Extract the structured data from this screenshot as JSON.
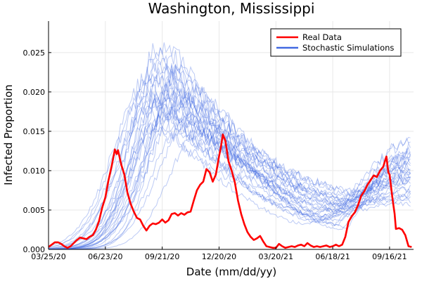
{
  "chart_data": {
    "type": "line",
    "title": "Washington, Mississippi",
    "xlabel": "Date (mm/dd/yy)",
    "ylabel": "Infected Proportion",
    "ylim": [
      0,
      0.029
    ],
    "xlim": [
      0,
      570
    ],
    "x_start_date": "03/25/20",
    "x_ticks": [
      {
        "day": 0,
        "label": "03/25/20"
      },
      {
        "day": 90,
        "label": "06/23/20"
      },
      {
        "day": 180,
        "label": "09/21/20"
      },
      {
        "day": 270,
        "label": "12/20/20"
      },
      {
        "day": 360,
        "label": "03/20/21"
      },
      {
        "day": 450,
        "label": "06/18/21"
      },
      {
        "day": 540,
        "label": "09/16/21"
      }
    ],
    "y_ticks": [
      {
        "value": 0,
        "label": "0.000"
      },
      {
        "value": 0.005,
        "label": "0.005"
      },
      {
        "value": 0.01,
        "label": "0.010"
      },
      {
        "value": 0.015,
        "label": "0.015"
      },
      {
        "value": 0.02,
        "label": "0.020"
      },
      {
        "value": 0.025,
        "label": "0.025"
      }
    ],
    "grid": true,
    "legend": {
      "placement": "top-right",
      "entries": [
        {
          "label": "Real Data",
          "color": "#ff0000"
        },
        {
          "label": "Stochastic Simulations",
          "color": "#4169e1"
        }
      ]
    },
    "series": [
      {
        "name": "Real Data",
        "color": "#ff0000",
        "points": [
          [
            0,
            0.0003
          ],
          [
            5,
            0.0006
          ],
          [
            10,
            0.0009
          ],
          [
            15,
            0.0009
          ],
          [
            20,
            0.0007
          ],
          [
            25,
            0.0004
          ],
          [
            30,
            0.0002
          ],
          [
            35,
            0.0004
          ],
          [
            40,
            0.0008
          ],
          [
            45,
            0.0012
          ],
          [
            50,
            0.0015
          ],
          [
            55,
            0.0014
          ],
          [
            60,
            0.0013
          ],
          [
            65,
            0.0016
          ],
          [
            70,
            0.0018
          ],
          [
            75,
            0.0025
          ],
          [
            80,
            0.0036
          ],
          [
            85,
            0.0053
          ],
          [
            90,
            0.0066
          ],
          [
            95,
            0.0088
          ],
          [
            100,
            0.0106
          ],
          [
            105,
            0.0127
          ],
          [
            108,
            0.0121
          ],
          [
            110,
            0.0126
          ],
          [
            115,
            0.0108
          ],
          [
            120,
            0.0095
          ],
          [
            125,
            0.0072
          ],
          [
            130,
            0.0058
          ],
          [
            135,
            0.0048
          ],
          [
            140,
            0.004
          ],
          [
            145,
            0.0038
          ],
          [
            150,
            0.003
          ],
          [
            155,
            0.0024
          ],
          [
            160,
            0.003
          ],
          [
            165,
            0.0033
          ],
          [
            170,
            0.0032
          ],
          [
            175,
            0.0034
          ],
          [
            180,
            0.0038
          ],
          [
            185,
            0.0034
          ],
          [
            190,
            0.0037
          ],
          [
            195,
            0.0045
          ],
          [
            200,
            0.0046
          ],
          [
            205,
            0.0043
          ],
          [
            210,
            0.0046
          ],
          [
            215,
            0.0044
          ],
          [
            220,
            0.0047
          ],
          [
            225,
            0.0048
          ],
          [
            230,
            0.0062
          ],
          [
            235,
            0.0075
          ],
          [
            240,
            0.0082
          ],
          [
            245,
            0.0086
          ],
          [
            250,
            0.0102
          ],
          [
            255,
            0.0098
          ],
          [
            260,
            0.0086
          ],
          [
            265,
            0.0095
          ],
          [
            270,
            0.0118
          ],
          [
            273,
            0.013
          ],
          [
            276,
            0.0146
          ],
          [
            280,
            0.0138
          ],
          [
            285,
            0.0112
          ],
          [
            290,
            0.01
          ],
          [
            295,
            0.0085
          ],
          [
            300,
            0.0062
          ],
          [
            305,
            0.0045
          ],
          [
            310,
            0.0032
          ],
          [
            315,
            0.0022
          ],
          [
            320,
            0.0016
          ],
          [
            325,
            0.0012
          ],
          [
            330,
            0.0014
          ],
          [
            335,
            0.0017
          ],
          [
            340,
            0.001
          ],
          [
            345,
            0.0004
          ],
          [
            350,
            0.0003
          ],
          [
            355,
            0.0002
          ],
          [
            360,
            0.0002
          ],
          [
            365,
            0.0007
          ],
          [
            370,
            0.0004
          ],
          [
            375,
            0.0002
          ],
          [
            380,
            0.0003
          ],
          [
            385,
            0.0004
          ],
          [
            390,
            0.0003
          ],
          [
            395,
            0.0005
          ],
          [
            400,
            0.0006
          ],
          [
            405,
            0.0004
          ],
          [
            410,
            0.0008
          ],
          [
            415,
            0.0005
          ],
          [
            420,
            0.0003
          ],
          [
            425,
            0.0004
          ],
          [
            430,
            0.0003
          ],
          [
            435,
            0.0004
          ],
          [
            440,
            0.0005
          ],
          [
            445,
            0.0003
          ],
          [
            450,
            0.0004
          ],
          [
            455,
            0.0006
          ],
          [
            460,
            0.0004
          ],
          [
            465,
            0.0006
          ],
          [
            470,
            0.0016
          ],
          [
            475,
            0.0035
          ],
          [
            480,
            0.0042
          ],
          [
            485,
            0.0047
          ],
          [
            490,
            0.0056
          ],
          [
            495,
            0.0068
          ],
          [
            500,
            0.0074
          ],
          [
            505,
            0.0082
          ],
          [
            510,
            0.0088
          ],
          [
            515,
            0.0094
          ],
          [
            520,
            0.0092
          ],
          [
            525,
            0.01
          ],
          [
            530,
            0.0105
          ],
          [
            535,
            0.0118
          ],
          [
            538,
            0.0098
          ],
          [
            540,
            0.0095
          ],
          [
            545,
            0.0062
          ],
          [
            548,
            0.0045
          ],
          [
            550,
            0.0026
          ],
          [
            555,
            0.0027
          ],
          [
            560,
            0.0025
          ],
          [
            565,
            0.0018
          ],
          [
            570,
            0.0004
          ],
          [
            575,
            0.0003
          ]
        ]
      },
      {
        "name": "Stochastic Simulations",
        "color": "#4169e1",
        "runs": [
          {
            "peak_day": 175,
            "peak": 0.0255,
            "trough_day": 465,
            "trough": 0.0025,
            "end": 0.0095
          },
          {
            "peak_day": 188,
            "peak": 0.0262,
            "trough_day": 475,
            "trough": 0.0028,
            "end": 0.0115
          },
          {
            "peak_day": 180,
            "peak": 0.0235,
            "trough_day": 455,
            "trough": 0.0032,
            "end": 0.0105
          },
          {
            "peak_day": 200,
            "peak": 0.0245,
            "trough_day": 480,
            "trough": 0.0045,
            "end": 0.0092
          },
          {
            "peak_day": 165,
            "peak": 0.0225,
            "trough_day": 440,
            "trough": 0.0038,
            "end": 0.0088
          },
          {
            "peak_day": 210,
            "peak": 0.023,
            "trough_day": 490,
            "trough": 0.0052,
            "end": 0.0125
          },
          {
            "peak_day": 172,
            "peak": 0.0218,
            "trough_day": 450,
            "trough": 0.0042,
            "end": 0.0072
          },
          {
            "peak_day": 195,
            "peak": 0.021,
            "trough_day": 470,
            "trough": 0.0055,
            "end": 0.0135
          },
          {
            "peak_day": 160,
            "peak": 0.0205,
            "trough_day": 430,
            "trough": 0.0035,
            "end": 0.0068
          },
          {
            "peak_day": 215,
            "peak": 0.0215,
            "trough_day": 485,
            "trough": 0.006,
            "end": 0.0105
          },
          {
            "peak_day": 185,
            "peak": 0.02,
            "trough_day": 460,
            "trough": 0.0048,
            "end": 0.0098
          },
          {
            "peak_day": 178,
            "peak": 0.0195,
            "trough_day": 445,
            "trough": 0.0058,
            "end": 0.0082
          },
          {
            "peak_day": 205,
            "peak": 0.0198,
            "trough_day": 475,
            "trough": 0.0062,
            "end": 0.0112
          },
          {
            "peak_day": 168,
            "peak": 0.0188,
            "trough_day": 420,
            "trough": 0.0044,
            "end": 0.0075
          },
          {
            "peak_day": 222,
            "peak": 0.0192,
            "trough_day": 495,
            "trough": 0.0068,
            "end": 0.0142
          },
          {
            "peak_day": 190,
            "peak": 0.0182,
            "trough_day": 455,
            "trough": 0.0052,
            "end": 0.0065
          },
          {
            "peak_day": 155,
            "peak": 0.0178,
            "trough_day": 410,
            "trough": 0.0032,
            "end": 0.0058
          },
          {
            "peak_day": 198,
            "peak": 0.0172,
            "trough_day": 468,
            "trough": 0.0065,
            "end": 0.0118
          },
          {
            "peak_day": 230,
            "peak": 0.0168,
            "trough_day": 500,
            "trough": 0.0072,
            "end": 0.0128
          },
          {
            "peak_day": 182,
            "peak": 0.0165,
            "trough_day": 448,
            "trough": 0.0048,
            "end": 0.0085
          },
          {
            "peak_day": 170,
            "peak": 0.0158,
            "trough_day": 435,
            "trough": 0.0042,
            "end": 0.0062
          },
          {
            "peak_day": 208,
            "peak": 0.0152,
            "trough_day": 478,
            "trough": 0.0066,
            "end": 0.0108
          },
          {
            "peak_day": 240,
            "peak": 0.0148,
            "trough_day": 505,
            "trough": 0.0074,
            "end": 0.0122
          },
          {
            "peak_day": 192,
            "peak": 0.0228,
            "trough_day": 462,
            "trough": 0.0036,
            "end": 0.0078
          },
          {
            "peak_day": 176,
            "peak": 0.0242,
            "trough_day": 458,
            "trough": 0.003,
            "end": 0.0102
          },
          {
            "peak_day": 202,
            "peak": 0.0222,
            "trough_day": 472,
            "trough": 0.0056,
            "end": 0.0096
          },
          {
            "peak_day": 186,
            "peak": 0.0208,
            "trough_day": 452,
            "trough": 0.005,
            "end": 0.0088
          },
          {
            "peak_day": 163,
            "peak": 0.0195,
            "trough_day": 425,
            "trough": 0.0038,
            "end": 0.007
          },
          {
            "peak_day": 212,
            "peak": 0.0185,
            "trough_day": 488,
            "trough": 0.0064,
            "end": 0.0112
          },
          {
            "peak_day": 196,
            "peak": 0.0176,
            "trough_day": 465,
            "trough": 0.0058,
            "end": 0.0092
          }
        ]
      }
    ]
  }
}
